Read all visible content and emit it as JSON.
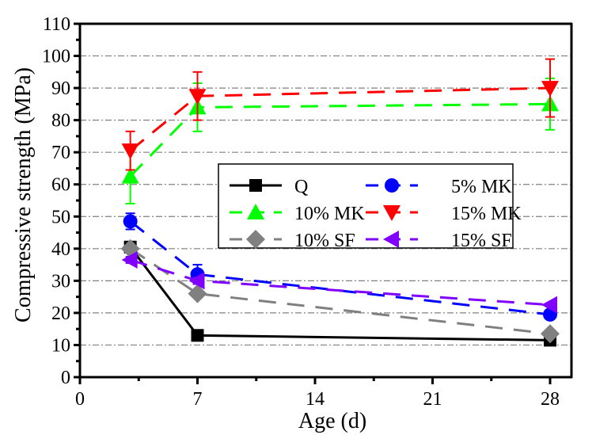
{
  "chart_data": {
    "type": "line",
    "title": "",
    "xlabel": "Age (d)",
    "ylabel": "Compressive strength (MPa)",
    "xlim": [
      0,
      30
    ],
    "ylim": [
      0,
      110
    ],
    "x_ticks": [
      0,
      7,
      14,
      21,
      28
    ],
    "y_ticks": [
      0,
      10,
      20,
      30,
      40,
      50,
      60,
      70,
      80,
      90,
      100,
      110
    ],
    "grid": "horizontal dash-dot",
    "legend_position": "center",
    "x": [
      3,
      7,
      28
    ],
    "series": [
      {
        "name": "Q",
        "color": "#000000",
        "marker": "square",
        "line": "solid",
        "values": [
          40.5,
          13,
          11.5
        ],
        "errors": [
          1.5,
          1,
          0.5
        ]
      },
      {
        "name": "5% MK",
        "color": "#0000ff",
        "marker": "circle",
        "line": "dashed",
        "values": [
          48.5,
          32,
          19.5
        ],
        "errors": [
          2.5,
          3,
          1
        ]
      },
      {
        "name": "10% MK",
        "color": "#00ff00",
        "marker": "triangle-up",
        "line": "dashed",
        "values": [
          62.5,
          84,
          85
        ],
        "errors": [
          8.5,
          7.5,
          8
        ]
      },
      {
        "name": "15% MK",
        "color": "#ff0000",
        "marker": "triangle-down",
        "line": "dashed",
        "values": [
          70.5,
          87.5,
          90
        ],
        "errors": [
          6,
          7.5,
          9
        ]
      },
      {
        "name": "10% SF",
        "color": "#808080",
        "marker": "diamond",
        "line": "dashed",
        "values": [
          40,
          26,
          13.5
        ],
        "errors": [
          1,
          1,
          0.5
        ]
      },
      {
        "name": "15% SF",
        "color": "#8000ff",
        "marker": "triangle-left",
        "line": "dashed",
        "values": [
          36.5,
          30,
          22.5
        ],
        "errors": [
          1,
          1,
          0.5
        ]
      }
    ]
  }
}
